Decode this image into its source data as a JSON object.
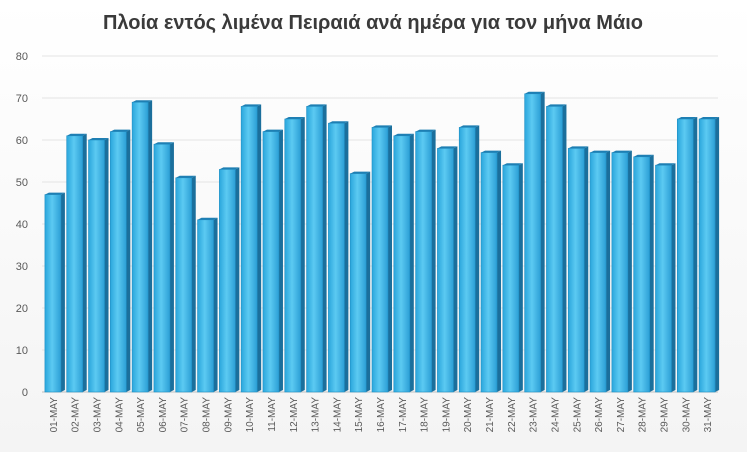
{
  "chart_data": {
    "type": "bar",
    "title": "Πλοία εντός λιμένα Πειραιά ανά ημέρα για τον μήνα Μάιο",
    "xlabel": "",
    "ylabel": "",
    "ylim": [
      0,
      80
    ],
    "yticks": [
      "0",
      "10",
      "20",
      "30",
      "40",
      "50",
      "60",
      "70",
      "80"
    ],
    "grid": true,
    "legend": "none",
    "bar_color": "#3bb8e8",
    "categories": [
      "01-MAY",
      "02-MAY",
      "03-MAY",
      "04-MAY",
      "05-MAY",
      "06-MAY",
      "07-MAY",
      "08-MAY",
      "09-MAY",
      "10-MAY",
      "11-MAY",
      "12-MAY",
      "13-MAY",
      "14-MAY",
      "15-MAY",
      "16-MAY",
      "17-MAY",
      "18-MAY",
      "19-MAY",
      "20-MAY",
      "21-MAY",
      "22-MAY",
      "23-MAY",
      "24-MAY",
      "25-MAY",
      "26-MAY",
      "27-MAY",
      "28-MAY",
      "29-MAY",
      "30-MAY",
      "31-MAY"
    ],
    "values": [
      47,
      61,
      60,
      62,
      69,
      59,
      51,
      41,
      53,
      68,
      62,
      65,
      68,
      64,
      52,
      63,
      61,
      62,
      58,
      63,
      57,
      54,
      71,
      68,
      58,
      57,
      57,
      56,
      54,
      65,
      65
    ]
  }
}
